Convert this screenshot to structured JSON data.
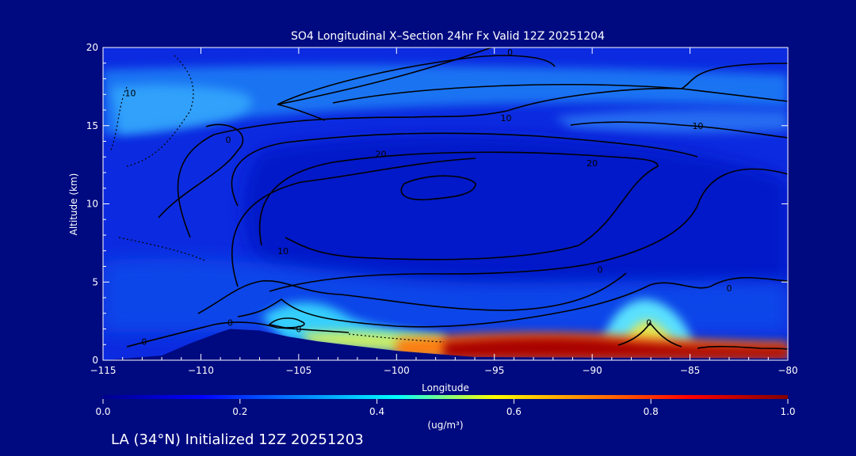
{
  "chart_data": {
    "type": "heatmap",
    "title": "SO4 Longitudinal X–Section 24hr  Fx Valid 12Z 20251204",
    "xlabel": "Longitude",
    "ylabel": "Altitude (km)",
    "xlim": [
      -115,
      -80
    ],
    "ylim": [
      0,
      20
    ],
    "x_ticks": [
      -115,
      -110,
      -105,
      -100,
      -95,
      -90,
      -85,
      -80
    ],
    "x_tick_labels": [
      "−115",
      "−110",
      "−105",
      "−100",
      "−95",
      "−90",
      "−85",
      "−80"
    ],
    "y_ticks": [
      0,
      5,
      10,
      15,
      20
    ],
    "y_tick_labels": [
      "0",
      "5",
      "10",
      "15",
      "20"
    ],
    "grid": false,
    "colorbar": {
      "min": 0.0,
      "max": 1.0,
      "ticks": [
        0.0,
        0.2,
        0.4,
        0.6,
        0.8,
        1.0
      ],
      "tick_labels": [
        "0.0",
        "0.2",
        "0.4",
        "0.6",
        "0.8",
        "1.0"
      ],
      "unit_label": "(ug/m³)",
      "colormap": [
        "#00008c",
        "#0000ff",
        "#0080ff",
        "#00ffff",
        "#ffff00",
        "#ff8000",
        "#ff0000",
        "#800000"
      ]
    },
    "shaded_fields": [
      {
        "name": "upper band",
        "lon": [
          -115,
          -80
        ],
        "alt": [
          14.2,
          17.2
        ],
        "value": 0.2
      },
      {
        "name": "mid level",
        "lon": [
          -115,
          -80
        ],
        "alt": [
          1.5,
          5.0
        ],
        "value": 0.15
      },
      {
        "name": "low plume west",
        "lon": [
          -104,
          -97
        ],
        "alt": [
          0.8,
          1.6
        ],
        "value": 0.55
      },
      {
        "name": "surface maximum",
        "lon": [
          -96,
          -80
        ],
        "alt": [
          0.3,
          1.4
        ],
        "value": 1.0
      },
      {
        "name": "plume lift east",
        "lon": [
          -88,
          -85
        ],
        "alt": [
          1.0,
          3.5
        ],
        "value": 0.5
      }
    ],
    "contour_labels": [
      {
        "text": "0",
        "lon": -94.2,
        "alt": 19.7
      },
      {
        "text": "10",
        "lon": -113.6,
        "alt": 17.1
      },
      {
        "text": "0",
        "lon": -108.6,
        "alt": 14.1
      },
      {
        "text": "10",
        "lon": -94.4,
        "alt": 15.5
      },
      {
        "text": "10",
        "lon": -84.6,
        "alt": 15.0
      },
      {
        "text": "20",
        "lon": -100.8,
        "alt": 13.2
      },
      {
        "text": "20",
        "lon": -90.0,
        "alt": 12.6
      },
      {
        "text": "10",
        "lon": -105.8,
        "alt": 7.0
      },
      {
        "text": "0",
        "lon": -89.6,
        "alt": 5.8
      },
      {
        "text": "0",
        "lon": -83.0,
        "alt": 4.6
      },
      {
        "text": "0",
        "lon": -108.5,
        "alt": 2.4
      },
      {
        "text": "0",
        "lon": -105.0,
        "alt": 2.0
      },
      {
        "text": "0",
        "lon": -112.9,
        "alt": 1.2
      },
      {
        "text": "0",
        "lon": -87.1,
        "alt": 2.4
      }
    ],
    "terrain": {
      "lon": [
        -115,
        -112,
        -110.5,
        -109,
        -108.5,
        -107,
        -105.5,
        -104,
        -102,
        -100,
        -98,
        -96,
        -80
      ],
      "alt": [
        0,
        0.3,
        1.1,
        1.8,
        2.0,
        1.9,
        1.5,
        1.2,
        0.9,
        0.6,
        0.4,
        0.2,
        0.1
      ]
    }
  },
  "footer": {
    "caption": "LA (34°N) Initialized 12Z 20251203"
  }
}
